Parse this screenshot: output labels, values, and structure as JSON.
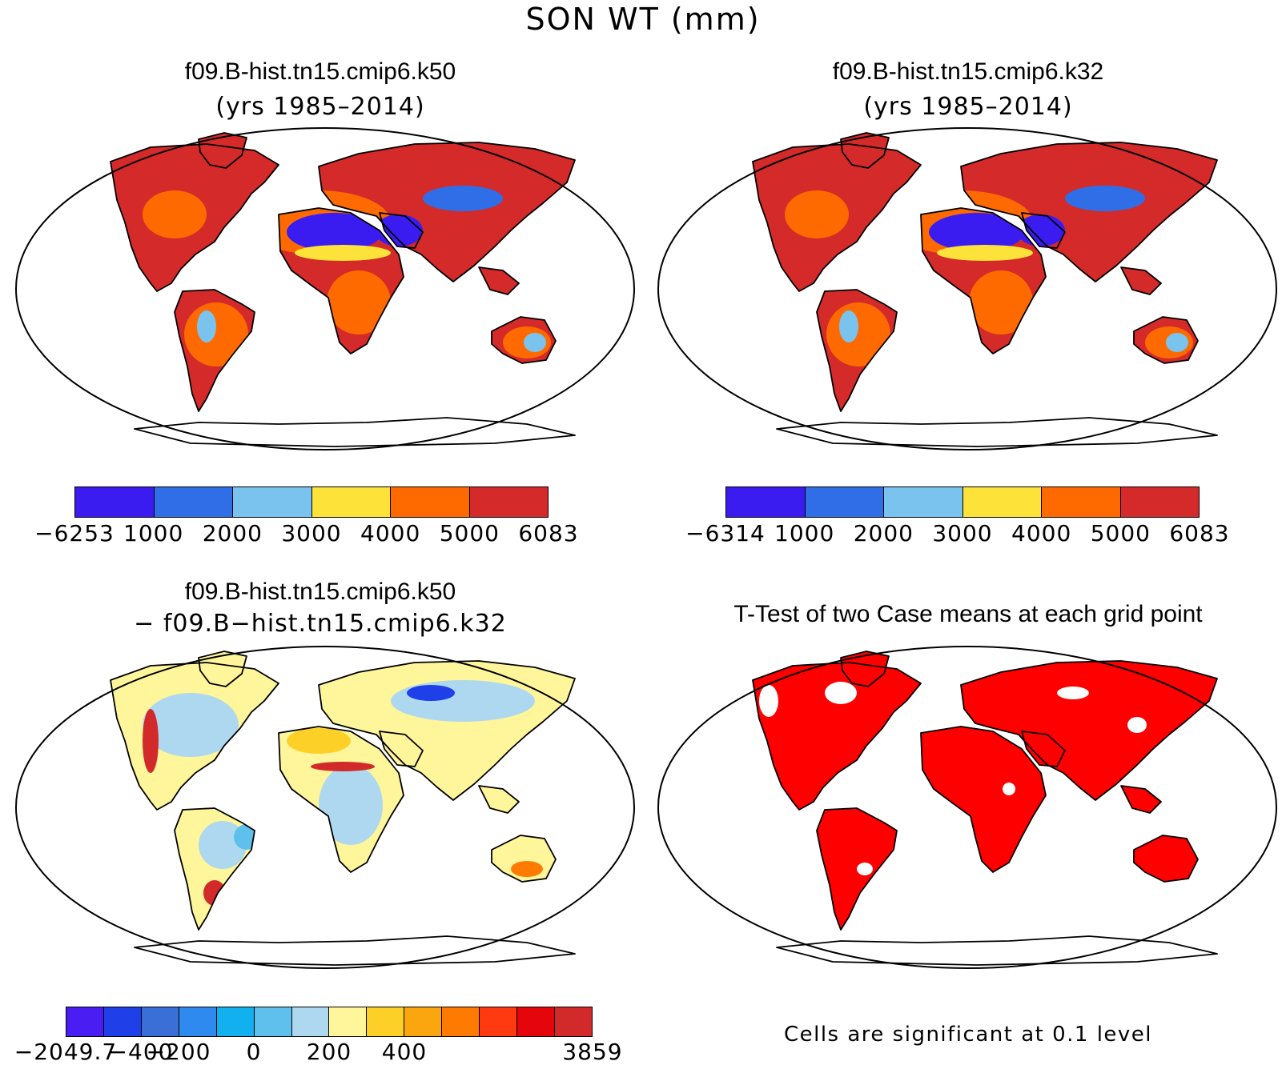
{
  "title": "SON WT (mm)",
  "panels": [
    {
      "id": "case1",
      "title": "f09.B-hist.tn15.cmip6.k50",
      "subtitle": "(yrs 1985–2014)",
      "type": "mean",
      "colorbar": {
        "colors": [
          "#3a1cf0",
          "#2f6ee6",
          "#79c3ee",
          "#fde23a",
          "#ff6a00",
          "#d42a2a"
        ],
        "labels": [
          "−6253",
          "1000",
          "2000",
          "3000",
          "4000",
          "5000",
          "6083"
        ]
      }
    },
    {
      "id": "case2",
      "title": "f09.B-hist.tn15.cmip6.k32",
      "subtitle": "(yrs 1985–2014)",
      "type": "mean",
      "colorbar": {
        "colors": [
          "#3a1cf0",
          "#2f6ee6",
          "#79c3ee",
          "#fde23a",
          "#ff6a00",
          "#d42a2a"
        ],
        "labels": [
          "−6314",
          "1000",
          "2000",
          "3000",
          "4000",
          "5000",
          "6083"
        ]
      }
    },
    {
      "id": "diff",
      "title": "f09.B-hist.tn15.cmip6.k50",
      "subtitle": "− f09.B−hist.tn15.cmip6.k32",
      "type": "difference",
      "colorbar": {
        "colors": [
          "#4a1ef2",
          "#1f3fe8",
          "#3a6fd8",
          "#2f8af0",
          "#13b0f0",
          "#5fc0ee",
          "#add8ef",
          "#fff59a",
          "#fdd028",
          "#fba60e",
          "#ff7a00",
          "#ff3a10",
          "#e4060a",
          "#d22a2a"
        ],
        "labels": [
          "−2049.7",
          "−400",
          "−200",
          "0",
          "200",
          "400",
          "3859"
        ],
        "label_positions": [
          0,
          2,
          3,
          5,
          7,
          9,
          14
        ]
      }
    },
    {
      "id": "ttest",
      "title": "T-Test of two Case means at each grid point",
      "subtitle": "",
      "type": "significance",
      "color": "#ff0000",
      "footnote": "Cells are significant at 0.1 level"
    }
  ]
}
